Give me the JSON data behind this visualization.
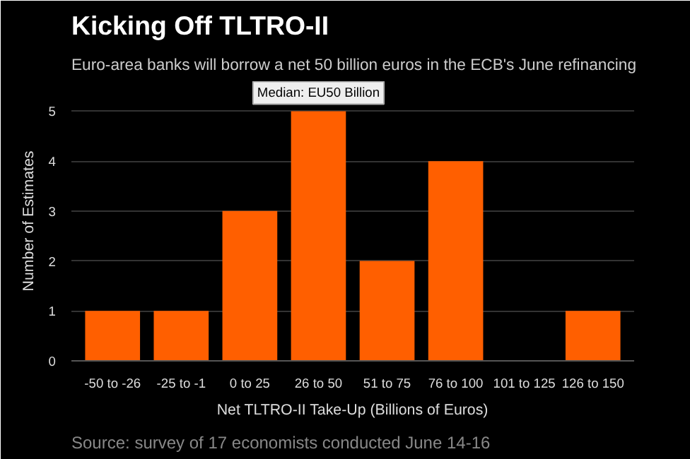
{
  "chart_data": {
    "type": "bar",
    "title": "Kicking Off TLTRO-II",
    "subtitle": "Euro-area banks will borrow a net 50 billion euros in the ECB's June refinancing",
    "xlabel": "Net TLTRO-II Take-Up (Billions of Euros)",
    "ylabel": "Number of Estimates",
    "categories": [
      "-50 to -26",
      "-25 to -1",
      "0 to 25",
      "26 to 50",
      "51 to 75",
      "76 to 100",
      "101 to 125",
      "126 to 150"
    ],
    "values": [
      1,
      1,
      3,
      5,
      2,
      4,
      0,
      1
    ],
    "color": "#ff5f00",
    "ylim": [
      0,
      5.6
    ],
    "yticks": [
      0,
      1,
      2,
      3,
      4,
      5
    ],
    "grid": "y",
    "annotations": [
      {
        "text": "Median: EU50 Billion",
        "x": "26 to 50",
        "y": 5
      },
      "Source: survey of 17 economists conducted June 14-16"
    ]
  }
}
